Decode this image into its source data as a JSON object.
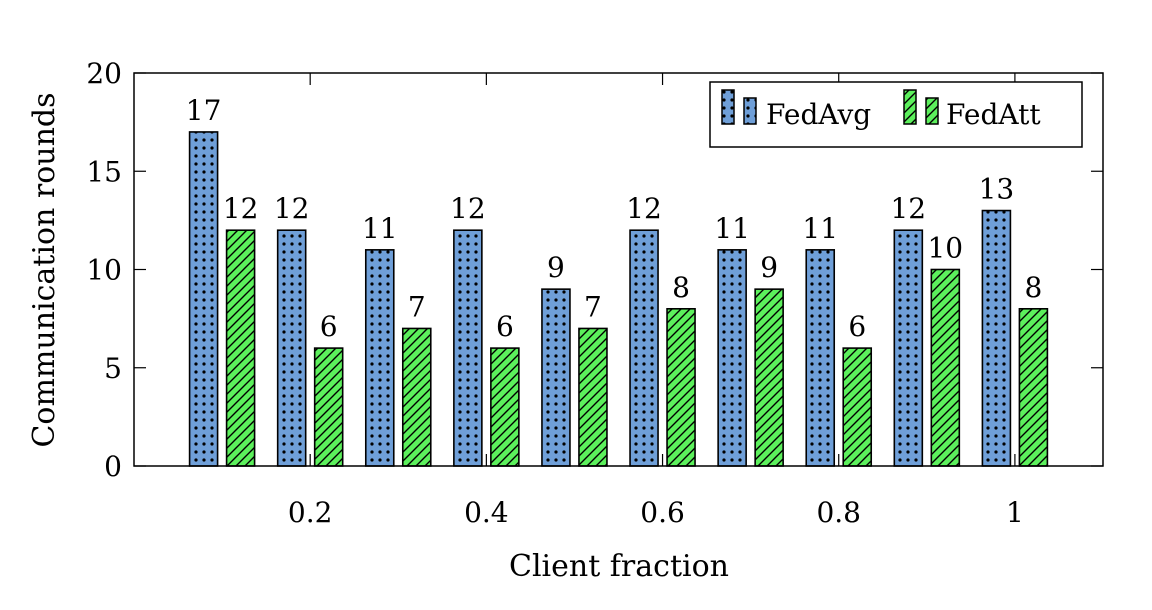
{
  "chart_data": {
    "type": "bar",
    "title": "",
    "xlabel": "Client fraction",
    "ylabel": "Communication rounds",
    "x": [
      0.1,
      0.2,
      0.3,
      0.4,
      0.5,
      0.6,
      0.7,
      0.8,
      0.9,
      1.0
    ],
    "xlim": [
      0.0,
      1.1
    ],
    "ylim": [
      0,
      20
    ],
    "xticks": [
      0.2,
      0.4,
      0.6,
      0.8,
      1.0
    ],
    "xtick_labels": [
      "0.2",
      "0.4",
      "0.6",
      "0.8",
      "1"
    ],
    "yticks": [
      0,
      5,
      10,
      15,
      20
    ],
    "ytick_labels": [
      "0",
      "5",
      "10",
      "15",
      "20"
    ],
    "grid": false,
    "legend_position": "top-right",
    "series": [
      {
        "name": "FedAvg",
        "values": [
          17,
          12,
          11,
          12,
          9,
          12,
          11,
          11,
          12,
          13
        ],
        "color": "#6f9fd8",
        "pattern": "dots"
      },
      {
        "name": "FedAtt",
        "values": [
          12,
          6,
          7,
          6,
          7,
          8,
          9,
          6,
          10,
          8
        ],
        "color": "#5cf05c",
        "pattern": "diagonal-lines"
      }
    ]
  }
}
